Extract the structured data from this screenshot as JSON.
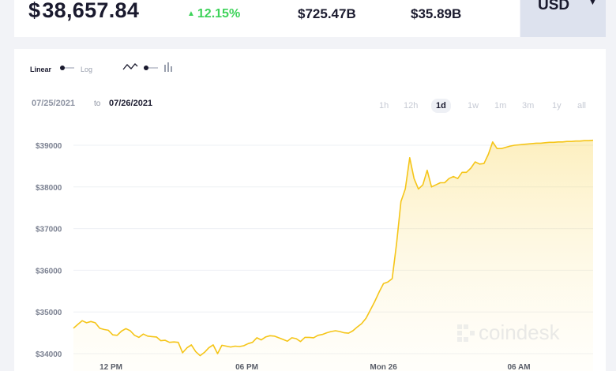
{
  "header": {
    "currency_symbol": "$",
    "price": "38,657.84",
    "change": "12.15%",
    "market_cap": "$725.47B",
    "volume": "$35.89B",
    "currency": "USD",
    "change_color": "#3ed35a"
  },
  "controls": {
    "scale_linear": "Linear",
    "scale_log": "Log",
    "chart_type_icons": [
      "line-chart-icon",
      "bar-chart-icon"
    ],
    "date_from": "07/25/2021",
    "date_to_word": "to",
    "date_to": "07/26/2021",
    "ranges": [
      "1h",
      "12h",
      "1d",
      "1w",
      "1m",
      "3m",
      "1y",
      "all"
    ],
    "active_range": "1d"
  },
  "watermark": "coindesk",
  "chart_data": {
    "type": "area",
    "title": "",
    "xlabel": "",
    "ylabel": "",
    "line_color": "#f5c518",
    "ylim": [
      33900,
      39200
    ],
    "yticks": [
      34000,
      35000,
      36000,
      37000,
      38000,
      39000
    ],
    "ytick_labels": [
      "$34000",
      "$35000",
      "$36000",
      "$37000",
      "$38000",
      "$39000"
    ],
    "xticks": [
      {
        "label": "12 PM",
        "x": 8.6
      },
      {
        "label": "06 PM",
        "x": 39.7
      },
      {
        "label": "Mon 26",
        "x": 71.0
      },
      {
        "label": "06 AM",
        "x": 102.0
      }
    ],
    "x": [
      0,
      1,
      2,
      3,
      4,
      5,
      6,
      7,
      8,
      9,
      10,
      11,
      12,
      13,
      14,
      15,
      16,
      17,
      18,
      19,
      20,
      21,
      22,
      23,
      24,
      25,
      26,
      27,
      28,
      29,
      30,
      31,
      32,
      33,
      34,
      35,
      36,
      37,
      38,
      39,
      40,
      41,
      42,
      43,
      44,
      45,
      46,
      47,
      48,
      49,
      50,
      51,
      52,
      53,
      54,
      55,
      56,
      57,
      58,
      59,
      60,
      61,
      62,
      63,
      64,
      65,
      66,
      67,
      68,
      69,
      70,
      71,
      72,
      73,
      74,
      75,
      76,
      77,
      78,
      79,
      80,
      81,
      82,
      83,
      84,
      85,
      86,
      87,
      88,
      89,
      90,
      91,
      92,
      93,
      94,
      95,
      96,
      97,
      98,
      99,
      100,
      101,
      102,
      103,
      104,
      105,
      106,
      107,
      108,
      109,
      110,
      111,
      112,
      113,
      114,
      115,
      116,
      117,
      118,
      119
    ],
    "values": [
      34610,
      34700,
      34790,
      34740,
      34770,
      34740,
      34610,
      34580,
      34560,
      34450,
      34440,
      34540,
      34600,
      34550,
      34440,
      34390,
      34470,
      34420,
      34410,
      34400,
      34310,
      34320,
      34270,
      34280,
      34270,
      34020,
      34140,
      34210,
      34050,
      33950,
      34030,
      34140,
      34210,
      34000,
      34200,
      34180,
      34160,
      34180,
      34170,
      34190,
      34240,
      34270,
      34380,
      34330,
      34400,
      34430,
      34420,
      34380,
      34340,
      34300,
      34380,
      34360,
      34290,
      34390,
      34390,
      34380,
      34440,
      34460,
      34500,
      34530,
      34550,
      34530,
      34500,
      34490,
      34550,
      34640,
      34720,
      34850,
      35050,
      35250,
      35480,
      35680,
      35720,
      35800,
      36650,
      37650,
      37950,
      38700,
      38200,
      37950,
      38050,
      38400,
      38000,
      38050,
      38100,
      38100,
      38200,
      38250,
      38200,
      38350,
      38350,
      38450,
      38600,
      38550,
      38560,
      38780,
      39080,
      38920,
      38920,
      38950,
      38980,
      39000,
      39010,
      39020,
      39030,
      39040,
      39050,
      39050,
      39060,
      39070,
      39070,
      39080,
      39080,
      39090,
      39090,
      39100,
      39100,
      39110,
      39110,
      39120
    ]
  }
}
